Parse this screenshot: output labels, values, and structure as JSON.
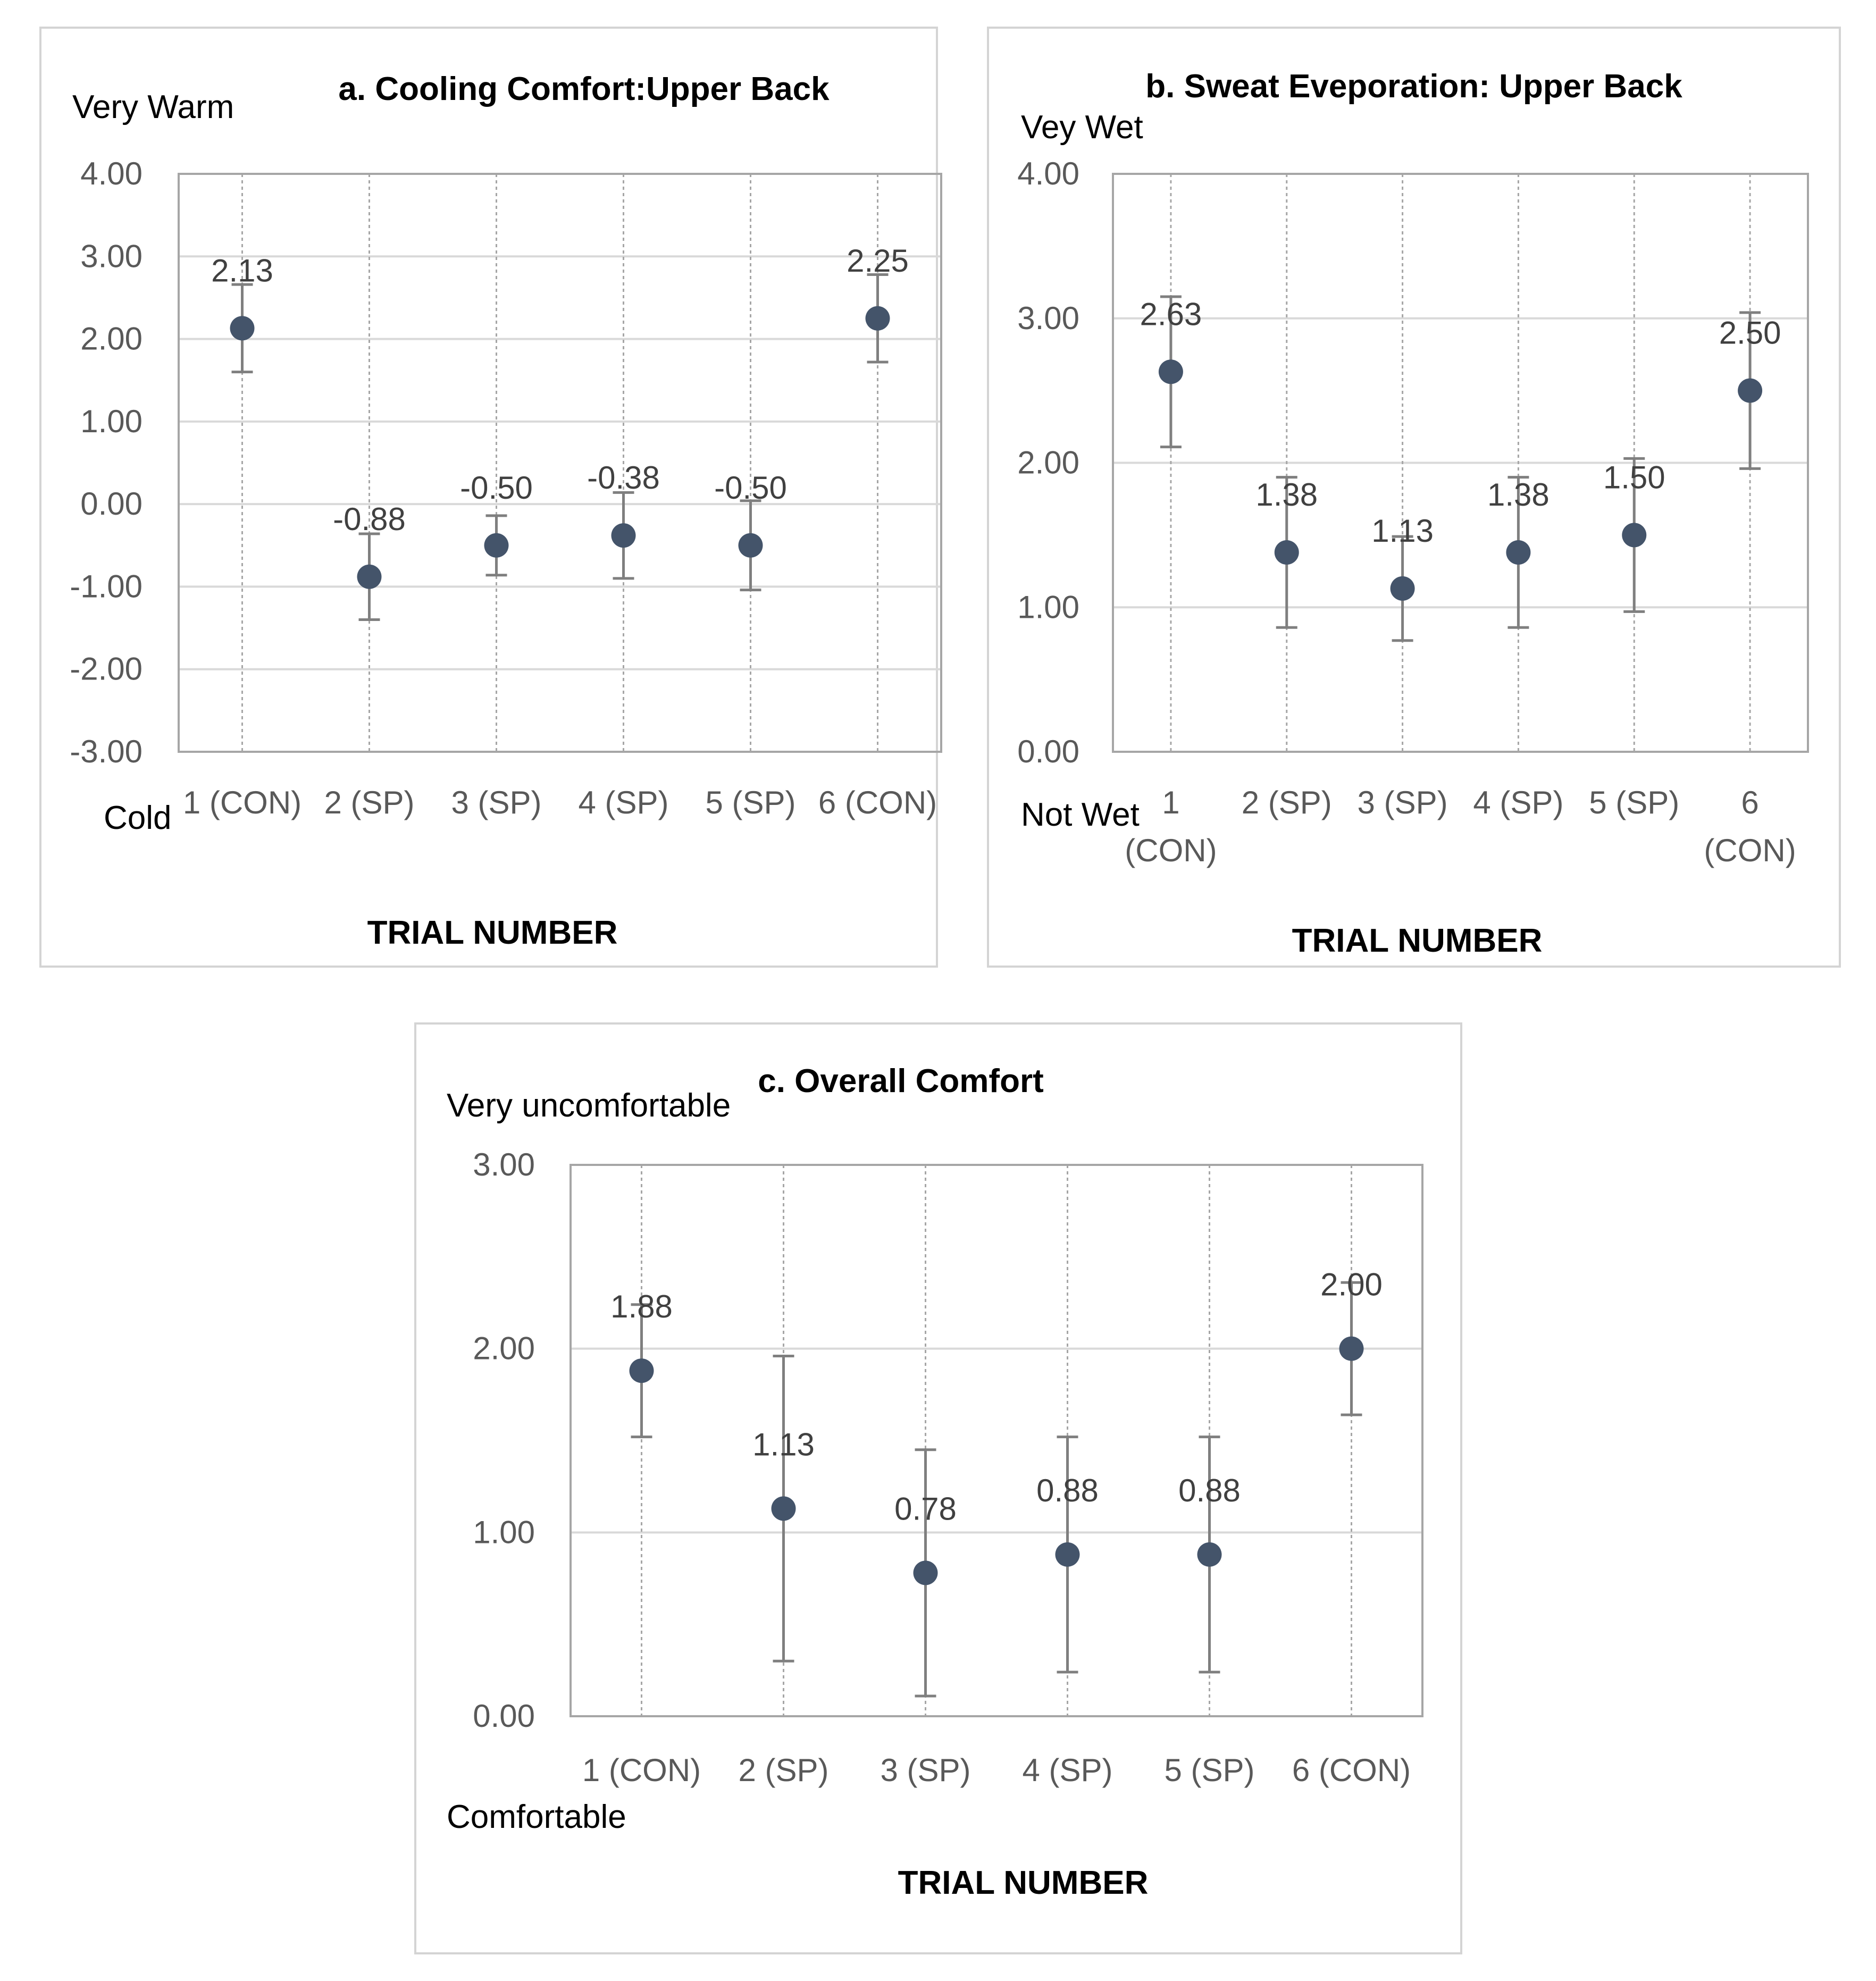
{
  "colors": {
    "marker": "#44546a",
    "error_bar": "#7f7f7f",
    "grid": "#d9d9d9",
    "frame": "#a6a6a6"
  },
  "chart_data": [
    {
      "type": "scatter",
      "title": "a. Cooling Comfort:Upper Back",
      "xlabel": "TRIAL NUMBER",
      "ylabel_top": "Very Warm",
      "ylabel_bottom": "Cold",
      "categories": [
        "1 (CON)",
        "2 (SP)",
        "3 (SP)",
        "4 (SP)",
        "5 (SP)",
        "6 (CON)"
      ],
      "values": [
        2.13,
        -0.88,
        -0.5,
        -0.38,
        -0.5,
        2.25
      ],
      "labels": [
        "2.13",
        "-0.88",
        "-0.50",
        "-0.38",
        "-0.50",
        "2.25"
      ],
      "err_low": [
        1.6,
        -1.4,
        -0.86,
        -0.9,
        -1.04,
        1.72
      ],
      "err_high": [
        2.66,
        -0.36,
        -0.14,
        0.14,
        0.04,
        2.78
      ],
      "ylim": [
        -3,
        4
      ],
      "yticks": [
        4,
        3,
        2,
        1,
        0,
        -1,
        -2,
        -3
      ],
      "ytick_labels": [
        "4.00",
        "3.00",
        "2.00",
        "1.00",
        "0.00",
        "-1.00",
        "-2.00",
        "-3.00"
      ],
      "grid": true
    },
    {
      "type": "scatter",
      "title": "b. Sweat Eveporation: Upper Back",
      "xlabel": "TRIAL NUMBER",
      "ylabel_top": "Vey Wet",
      "ylabel_bottom": "Not Wet",
      "categories": [
        "1 (CON)",
        "2 (SP)",
        "3 (SP)",
        "4 (SP)",
        "5 (SP)",
        "6 (CON)"
      ],
      "category_lines": [
        [
          "1",
          "(CON)"
        ],
        [
          "2 (SP)"
        ],
        [
          "3 (SP)"
        ],
        [
          "4 (SP)"
        ],
        [
          "5 (SP)"
        ],
        [
          "6",
          "(CON)"
        ]
      ],
      "values": [
        2.63,
        1.38,
        1.13,
        1.38,
        1.5,
        2.5
      ],
      "labels": [
        "2.63",
        "1.38",
        "1.13",
        "1.38",
        "1.50",
        "2.50"
      ],
      "err_low": [
        2.11,
        0.86,
        0.77,
        0.86,
        0.97,
        1.96
      ],
      "err_high": [
        3.15,
        1.9,
        1.49,
        1.9,
        2.03,
        3.04
      ],
      "ylim": [
        0,
        4
      ],
      "yticks": [
        4,
        3,
        2,
        1,
        0
      ],
      "ytick_labels": [
        "4.00",
        "3.00",
        "2.00",
        "1.00",
        "0.00"
      ],
      "grid": true
    },
    {
      "type": "scatter",
      "title": "c. Overall Comfort",
      "xlabel": "TRIAL NUMBER",
      "ylabel_top": "Very uncomfortable",
      "ylabel_bottom": "Comfortable",
      "categories": [
        "1 (CON)",
        "2 (SP)",
        "3 (SP)",
        "4 (SP)",
        "5 (SP)",
        "6 (CON)"
      ],
      "values": [
        1.88,
        1.13,
        0.78,
        0.88,
        0.88,
        2.0
      ],
      "labels": [
        "1.88",
        "1.13",
        "0.78",
        "0.88",
        "0.88",
        "2.00"
      ],
      "err_low": [
        1.52,
        0.3,
        0.11,
        0.24,
        0.24,
        1.64
      ],
      "err_high": [
        2.24,
        1.96,
        1.45,
        1.52,
        1.52,
        2.36
      ],
      "ylim": [
        0,
        3
      ],
      "yticks": [
        3,
        2,
        1,
        0
      ],
      "ytick_labels": [
        "3.00",
        "2.00",
        "1.00",
        "0.00"
      ],
      "grid": true
    }
  ]
}
